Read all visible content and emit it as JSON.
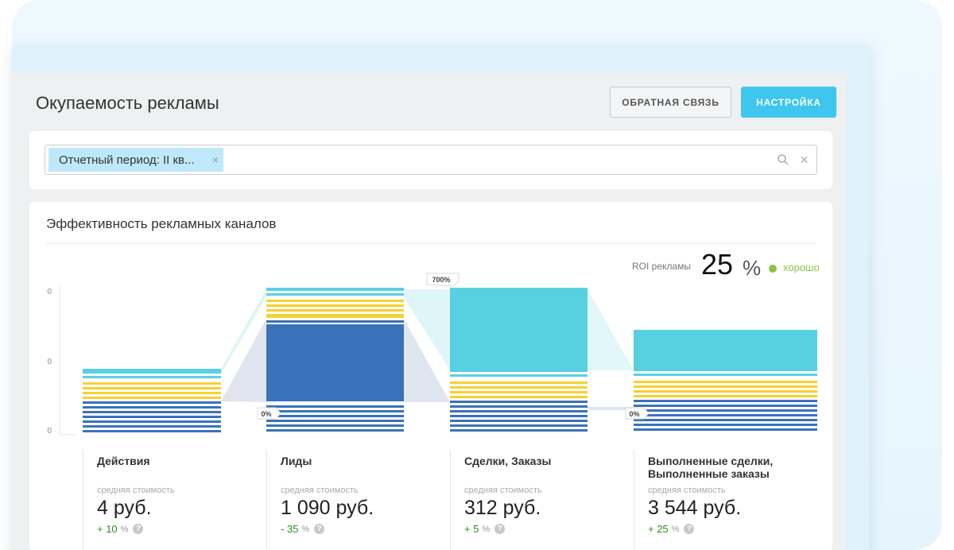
{
  "page_title": "Окупаемость рекламы",
  "buttons": {
    "feedback": "ОБРАТНАЯ СВЯЗЬ",
    "settings": "НАСТРОЙКА"
  },
  "filter": {
    "chip_label": "Отчетный период: II кв...",
    "chip_remove": "×",
    "clear": "×"
  },
  "chart": {
    "title": "Эффективность рекламных каналов",
    "y_tick_labels": [
      "0",
      "0",
      "0"
    ],
    "conversion_labels": [
      "0%",
      "700%",
      "0%"
    ],
    "roi": {
      "label": "ROI рекламы",
      "value": "25",
      "unit": "%",
      "status": "хорошо",
      "status_color": "#8bc34a"
    }
  },
  "metrics": [
    {
      "name": "Действия",
      "sub": "средняя стоимость",
      "value": "4 руб.",
      "delta": "+ 10",
      "delta_unit": "%"
    },
    {
      "name": "Лиды",
      "sub": "средняя стоимость",
      "value": "1 090 руб.",
      "delta": "- 35",
      "delta_unit": "%"
    },
    {
      "name": "Сделки, Заказы",
      "sub": "средняя стоимость",
      "value": "312 руб.",
      "delta": "+ 5",
      "delta_unit": "%"
    },
    {
      "name": "Выполненные сделки, Выполненные заказы",
      "sub": "средняя стоимость",
      "value": "3 544 руб.",
      "delta": "+ 25",
      "delta_unit": "%"
    }
  ],
  "colors": {
    "accent": "#3ec6ee",
    "cyan": "#59d0e0",
    "yellow": "#f5d131",
    "blue": "#3a72b9",
    "positive": "#2e8b24"
  }
}
